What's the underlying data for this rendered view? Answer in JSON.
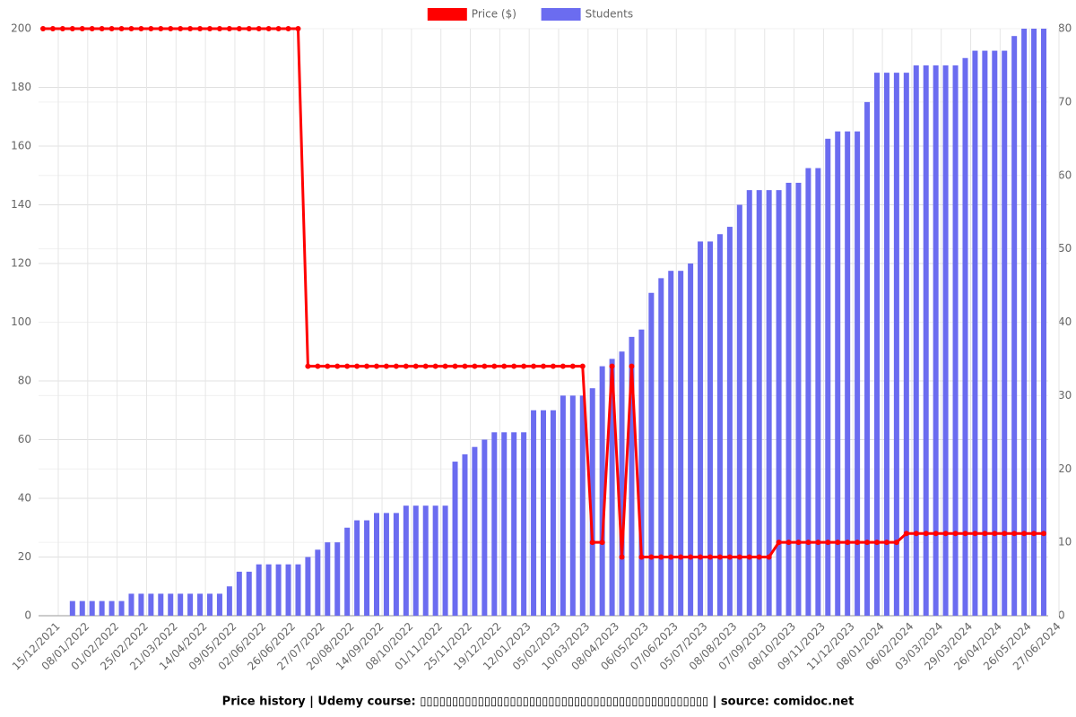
{
  "chart_data": {
    "type": "combo",
    "title": "Price history | Udemy course: ▯▯▯▯▯▯▯▯▯▯▯▯▯▯▯▯▯▯▯▯▯▯▯▯▯▯▯▯▯▯▯▯▯▯▯▯▯▯▯▯▯▯▯▯▯ | source: comidoc.net",
    "categories": [
      "15/12/2021",
      null,
      null,
      "08/01/2022",
      null,
      null,
      "01/02/2022",
      null,
      null,
      "25/02/2022",
      null,
      null,
      "21/03/2022",
      null,
      null,
      "14/04/2022",
      null,
      null,
      "09/05/2022",
      null,
      null,
      "02/06/2022",
      null,
      null,
      "26/06/2022",
      null,
      null,
      "27/07/2022",
      null,
      null,
      "20/08/2022",
      null,
      null,
      "14/09/2022",
      null,
      null,
      "08/10/2022",
      null,
      null,
      "01/11/2022",
      null,
      null,
      "25/11/2022",
      null,
      null,
      "19/12/2022",
      null,
      null,
      "12/01/2023",
      null,
      null,
      "05/02/2023",
      null,
      null,
      "10/03/2023",
      null,
      null,
      "08/04/2023",
      null,
      null,
      "06/05/2023",
      null,
      null,
      "07/06/2023",
      null,
      null,
      "05/07/2023",
      null,
      null,
      "08/08/2023",
      null,
      null,
      "07/09/2023",
      null,
      null,
      "08/10/2023",
      null,
      null,
      "09/11/2023",
      null,
      null,
      "11/12/2023",
      null,
      null,
      "08/01/2024",
      null,
      null,
      "06/02/2024",
      null,
      null,
      "03/03/2024",
      null,
      null,
      "29/03/2024",
      null,
      null,
      "26/04/2024",
      null,
      null,
      "26/05/2024",
      null,
      null,
      "27/06/2024"
    ],
    "series": [
      {
        "name": "Price ($)",
        "type": "line",
        "axis": "y",
        "color": "#ff0000",
        "values": [
          200,
          200,
          200,
          200,
          200,
          200,
          200,
          200,
          200,
          200,
          200,
          200,
          200,
          200,
          200,
          200,
          200,
          200,
          200,
          200,
          200,
          200,
          200,
          200,
          200,
          200,
          200,
          85,
          85,
          85,
          85,
          85,
          85,
          85,
          85,
          85,
          85,
          85,
          85,
          85,
          85,
          85,
          85,
          85,
          85,
          85,
          85,
          85,
          85,
          85,
          85,
          85,
          85,
          85,
          85,
          85,
          25,
          25,
          85,
          20,
          85,
          20,
          20,
          20,
          20,
          20,
          20,
          20,
          20,
          20,
          20,
          20,
          20,
          20,
          20,
          25,
          25,
          25,
          25,
          25,
          25,
          25,
          25,
          25,
          25,
          25,
          25,
          25,
          28,
          28,
          28,
          28,
          28,
          28,
          28,
          28,
          28,
          28,
          28,
          28,
          28,
          28,
          28
        ]
      },
      {
        "name": "Students",
        "type": "bar",
        "axis": "y2",
        "color": "#6b6cf0",
        "values": [
          0,
          0,
          0,
          2,
          2,
          2,
          2,
          2,
          2,
          3,
          3,
          3,
          3,
          3,
          3,
          3,
          3,
          3,
          3,
          4,
          6,
          6,
          7,
          7,
          7,
          7,
          7,
          8,
          9,
          10,
          10,
          12,
          13,
          13,
          14,
          14,
          14,
          15,
          15,
          15,
          15,
          15,
          21,
          22,
          23,
          24,
          25,
          25,
          25,
          25,
          28,
          28,
          28,
          30,
          30,
          30,
          31,
          34,
          35,
          36,
          38,
          39,
          44,
          46,
          47,
          47,
          48,
          51,
          51,
          52,
          53,
          56,
          58,
          58,
          58,
          58,
          59,
          59,
          61,
          61,
          65,
          66,
          66,
          66,
          70,
          74,
          74,
          74,
          74,
          75,
          75,
          75,
          75,
          75,
          76,
          77,
          77,
          77,
          77,
          79,
          80,
          80,
          80
        ]
      }
    ],
    "ylim": [
      0,
      200
    ],
    "yticks": [
      0,
      20,
      40,
      60,
      80,
      100,
      120,
      140,
      160,
      180,
      200
    ],
    "y2lim": [
      0,
      80
    ],
    "y2ticks": [
      0,
      10,
      20,
      30,
      40,
      50,
      60,
      70,
      80
    ],
    "grid": true,
    "legend": "top"
  }
}
